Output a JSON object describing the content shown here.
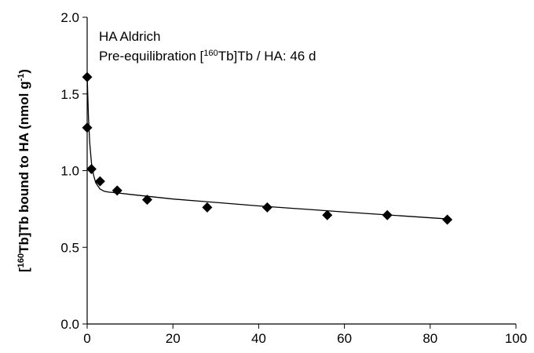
{
  "chart_data": {
    "type": "scatter",
    "annotations": [
      "HA Aldrich",
      [
        {
          "text": "Pre-equilibration ["
        },
        {
          "text": "160",
          "sup": true
        },
        {
          "text": "Tb]Tb / HA: 46 d"
        }
      ]
    ],
    "y_label": [
      {
        "text": "["
      },
      {
        "text": "160",
        "sup": true
      },
      {
        "text": "Tb]Tb bound to HA (nmol g"
      },
      {
        "text": "-1",
        "sup": true
      },
      {
        "text": ")"
      }
    ],
    "xlim": [
      0,
      100
    ],
    "xticks": [
      0,
      20,
      40,
      60,
      80,
      100
    ],
    "ylim": [
      0,
      2
    ],
    "yticks": [
      {
        "value": 0,
        "label": "0.0"
      },
      {
        "value": 0.5,
        "label": "0.5"
      },
      {
        "value": 1,
        "label": "1.0"
      },
      {
        "value": 1.5,
        "label": "1.5"
      },
      {
        "value": 2,
        "label": "2.0"
      }
    ],
    "series": [
      {
        "kind": "points",
        "marker": "diamond",
        "color": "#000000",
        "x": [
          0,
          0,
          1,
          3,
          7,
          14,
          28,
          42,
          56,
          70,
          84
        ],
        "values": [
          1.61,
          1.28,
          1.01,
          0.93,
          0.87,
          0.81,
          0.76,
          0.76,
          0.71,
          0.71,
          0.68
        ]
      },
      {
        "kind": "line",
        "color": "#000000",
        "x": [
          0,
          0.3,
          0.6,
          1,
          1.5,
          2,
          3,
          4,
          5,
          7,
          10,
          20,
          40,
          60,
          84
        ],
        "values": [
          1.62,
          1.35,
          1.18,
          1.05,
          0.97,
          0.92,
          0.88,
          0.865,
          0.86,
          0.855,
          0.845,
          0.815,
          0.77,
          0.73,
          0.685
        ]
      }
    ]
  }
}
